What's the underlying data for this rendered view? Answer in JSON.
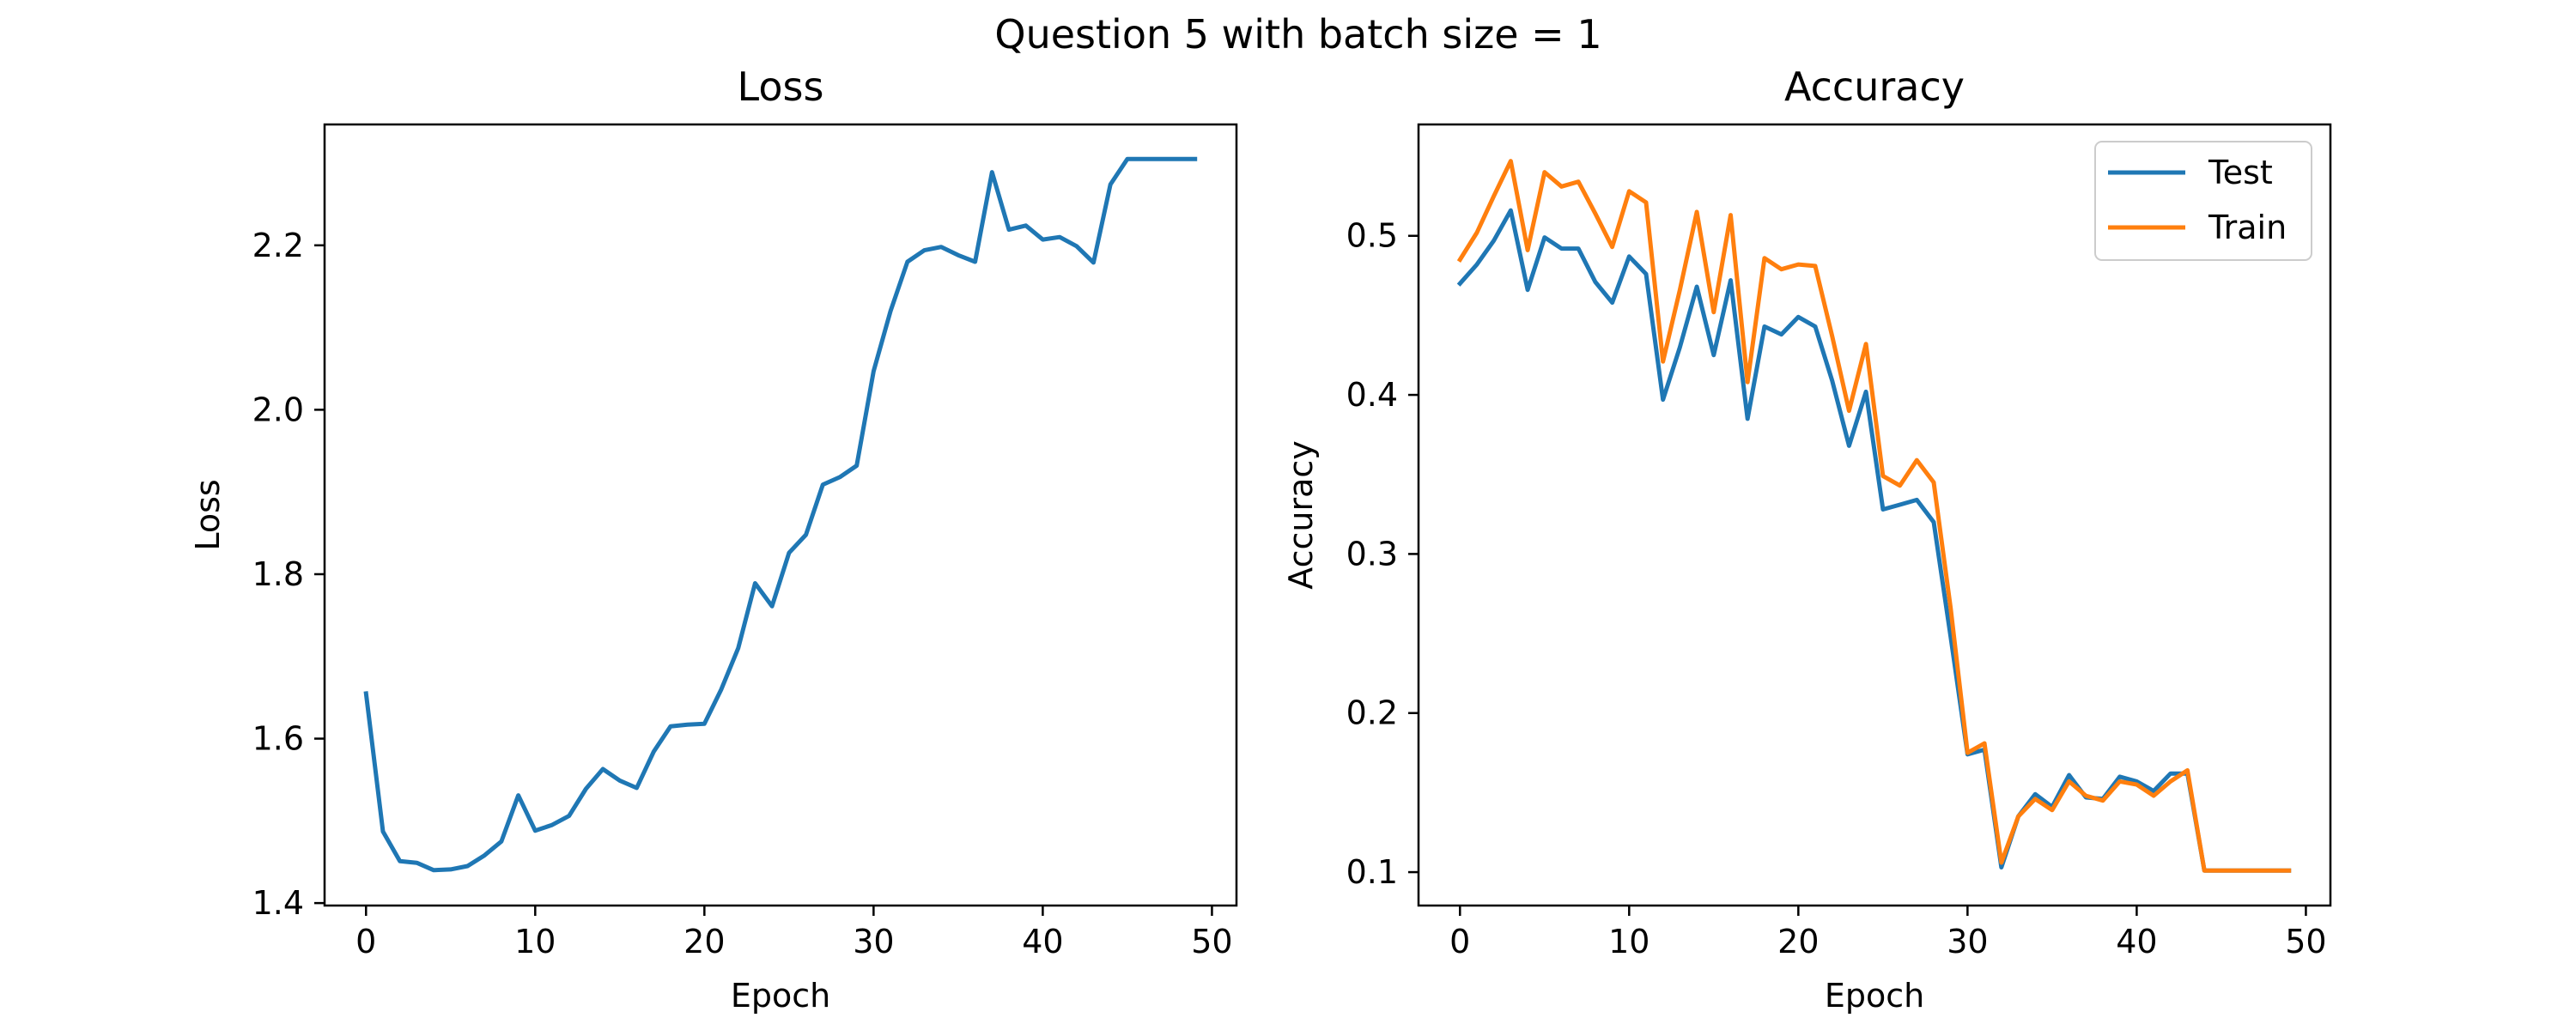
{
  "figure": {
    "suptitle": "Question 5 with batch size = 1"
  },
  "chart_data": [
    {
      "type": "line",
      "title": "Loss",
      "xlabel": "Epoch",
      "ylabel": "Loss",
      "xlim": [
        -2.45,
        51.45
      ],
      "ylim": [
        1.397,
        2.347
      ],
      "xticks": [
        "0",
        "10",
        "20",
        "30",
        "40",
        "50"
      ],
      "xtick_values": [
        0,
        10,
        20,
        30,
        40,
        50
      ],
      "yticks": [
        "1.4",
        "1.6",
        "1.8",
        "2.0",
        "2.2"
      ],
      "ytick_values": [
        1.4,
        1.6,
        1.8,
        2.0,
        2.2
      ],
      "grid": false,
      "legend": null,
      "x": [
        0,
        1,
        2,
        3,
        4,
        5,
        6,
        7,
        8,
        9,
        10,
        11,
        12,
        13,
        14,
        15,
        16,
        17,
        18,
        19,
        20,
        21,
        22,
        23,
        24,
        25,
        26,
        27,
        28,
        29,
        30,
        31,
        32,
        33,
        34,
        35,
        36,
        37,
        38,
        39,
        40,
        41,
        42,
        43,
        44,
        45,
        46,
        47,
        48,
        49
      ],
      "series": [
        {
          "color": "#1f77b4",
          "values": [
            1.655,
            1.487,
            1.451,
            1.449,
            1.44,
            1.441,
            1.445,
            1.458,
            1.475,
            1.531,
            1.488,
            1.495,
            1.506,
            1.539,
            1.563,
            1.549,
            1.54,
            1.584,
            1.615,
            1.617,
            1.618,
            1.66,
            1.71,
            1.789,
            1.761,
            1.826,
            1.848,
            1.909,
            1.918,
            1.932,
            2.047,
            2.12,
            2.18,
            2.194,
            2.198,
            2.188,
            2.18,
            2.289,
            2.219,
            2.224,
            2.207,
            2.21,
            2.199,
            2.179,
            2.274,
            2.305,
            2.305,
            2.305,
            2.305,
            2.305
          ]
        }
      ]
    },
    {
      "type": "line",
      "title": "Accuracy",
      "xlabel": "Epoch",
      "ylabel": "Accuracy",
      "xlim": [
        -2.45,
        51.45
      ],
      "ylim": [
        0.079,
        0.57
      ],
      "xticks": [
        "0",
        "10",
        "20",
        "30",
        "40",
        "50"
      ],
      "xtick_values": [
        0,
        10,
        20,
        30,
        40,
        50
      ],
      "yticks": [
        "0.1",
        "0.2",
        "0.3",
        "0.4",
        "0.5"
      ],
      "ytick_values": [
        0.1,
        0.2,
        0.3,
        0.4,
        0.5
      ],
      "grid": false,
      "legend": "upper right",
      "x": [
        0,
        1,
        2,
        3,
        4,
        5,
        6,
        7,
        8,
        9,
        10,
        11,
        12,
        13,
        14,
        15,
        16,
        17,
        18,
        19,
        20,
        21,
        22,
        23,
        24,
        25,
        26,
        27,
        28,
        29,
        30,
        31,
        32,
        33,
        34,
        35,
        36,
        37,
        38,
        39,
        40,
        41,
        42,
        43,
        44,
        45,
        46,
        47,
        48,
        49
      ],
      "series": [
        {
          "name": "Test",
          "color": "#1f77b4",
          "values": [
            0.47,
            0.482,
            0.497,
            0.516,
            0.466,
            0.499,
            0.492,
            0.492,
            0.471,
            0.458,
            0.487,
            0.476,
            0.397,
            0.43,
            0.468,
            0.425,
            0.472,
            0.385,
            0.443,
            0.438,
            0.449,
            0.443,
            0.409,
            0.368,
            0.402,
            0.328,
            0.331,
            0.334,
            0.32,
            0.248,
            0.174,
            0.177,
            0.103,
            0.135,
            0.149,
            0.141,
            0.161,
            0.147,
            0.146,
            0.16,
            0.157,
            0.151,
            0.162,
            0.162,
            0.101,
            0.101,
            0.101,
            0.101,
            0.101,
            0.101
          ]
        },
        {
          "name": "Train",
          "color": "#ff7f0e",
          "values": [
            0.485,
            0.502,
            0.525,
            0.547,
            0.491,
            0.54,
            0.531,
            0.534,
            0.514,
            0.493,
            0.528,
            0.521,
            0.421,
            0.466,
            0.515,
            0.452,
            0.513,
            0.408,
            0.486,
            0.479,
            0.482,
            0.481,
            0.437,
            0.39,
            0.432,
            0.349,
            0.343,
            0.359,
            0.345,
            0.266,
            0.175,
            0.181,
            0.106,
            0.135,
            0.146,
            0.139,
            0.157,
            0.148,
            0.145,
            0.157,
            0.155,
            0.148,
            0.157,
            0.164,
            0.101,
            0.101,
            0.101,
            0.101,
            0.101,
            0.101
          ]
        }
      ]
    }
  ]
}
